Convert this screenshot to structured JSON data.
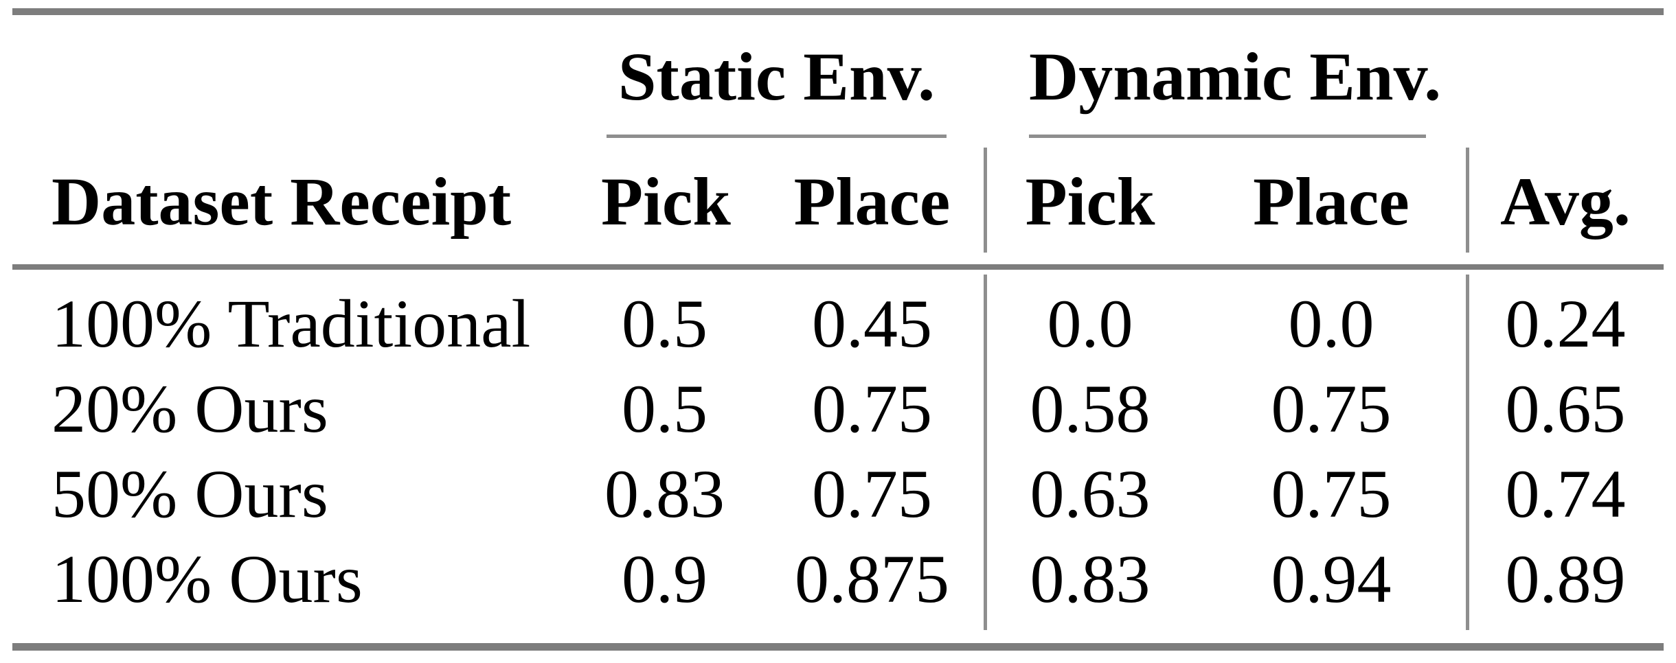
{
  "table": {
    "groups": [
      {
        "label": "Static Env."
      },
      {
        "label": "Dynamic Env."
      }
    ],
    "columns": {
      "dataset": "Dataset Receipt",
      "static_pick": "Pick",
      "static_place": "Place",
      "dynamic_pick": "Pick",
      "dynamic_place": "Place",
      "avg": "Avg."
    },
    "rows": [
      {
        "dataset": "100% Traditional",
        "static_pick": "0.5",
        "static_place": "0.45",
        "dynamic_pick": "0.0",
        "dynamic_place": "0.0",
        "avg": "0.24"
      },
      {
        "dataset": "20% Ours",
        "static_pick": "0.5",
        "static_place": "0.75",
        "dynamic_pick": "0.58",
        "dynamic_place": "0.75",
        "avg": "0.65"
      },
      {
        "dataset": "50% Ours",
        "static_pick": "0.83",
        "static_place": "0.75",
        "dynamic_pick": "0.63",
        "dynamic_place": "0.75",
        "avg": "0.74"
      },
      {
        "dataset": "100% Ours",
        "static_pick": "0.9",
        "static_place": "0.875",
        "dynamic_pick": "0.83",
        "dynamic_place": "0.94",
        "avg": "0.89"
      }
    ],
    "colors": {
      "rule": "#7d7d7d",
      "light_rule": "#8e8e8e",
      "text": "#000000",
      "background": "#ffffff"
    }
  }
}
